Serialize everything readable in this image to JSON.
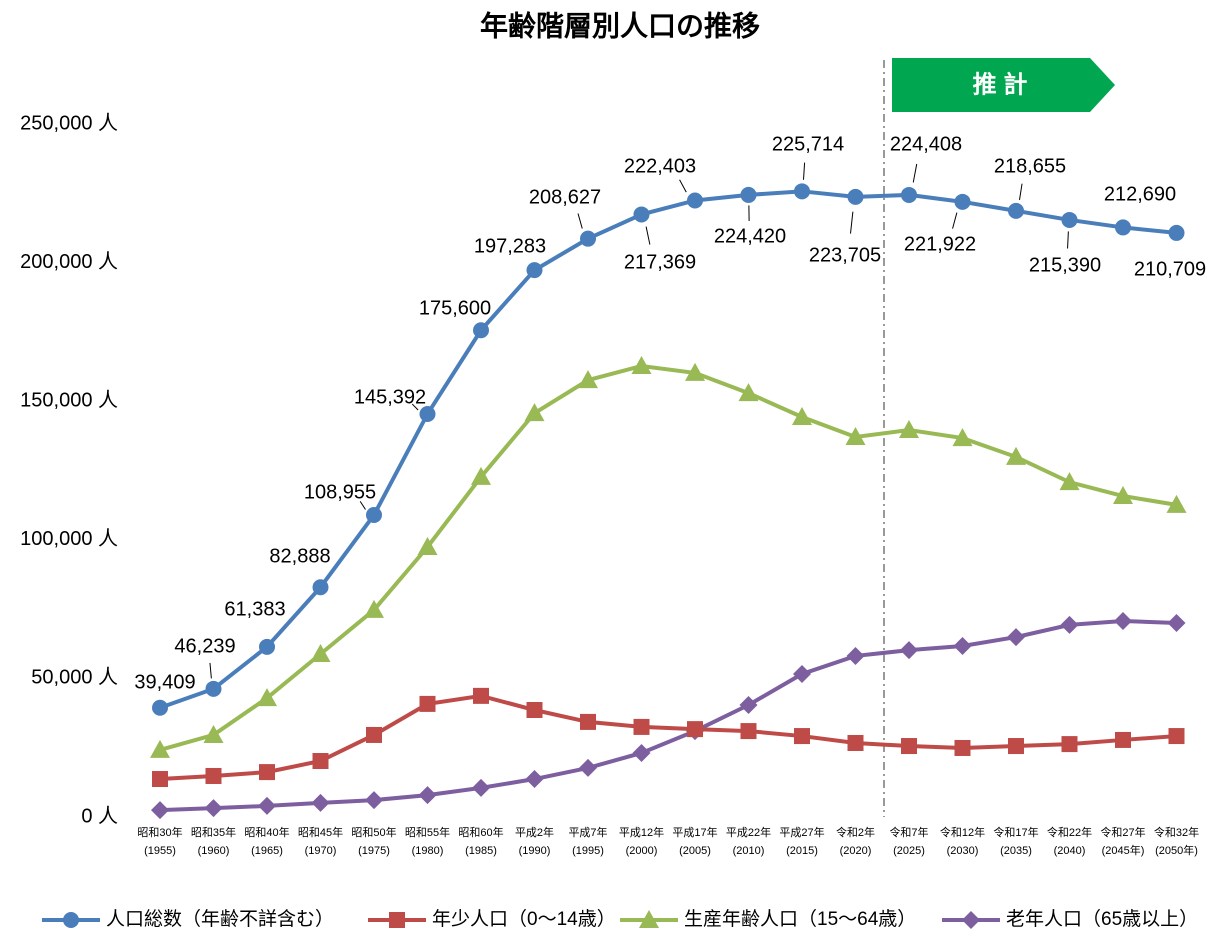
{
  "chart_data": {
    "type": "line",
    "title": "年齢階層別人口の推移",
    "annotation": "推 計",
    "categories": [
      [
        "昭和30年",
        "(1955)"
      ],
      [
        "昭和35年",
        "(1960)"
      ],
      [
        "昭和40年",
        "(1965)"
      ],
      [
        "昭和45年",
        "(1970)"
      ],
      [
        "昭和50年",
        "(1975)"
      ],
      [
        "昭和55年",
        "(1980)"
      ],
      [
        "昭和60年",
        "(1985)"
      ],
      [
        "平成2年",
        "(1990)"
      ],
      [
        "平成7年",
        "(1995)"
      ],
      [
        "平成12年",
        "(2000)"
      ],
      [
        "平成17年",
        "(2005)"
      ],
      [
        "平成22年",
        "(2010)"
      ],
      [
        "平成27年",
        "(2015)"
      ],
      [
        "令和2年",
        "(2020)"
      ],
      [
        "令和7年",
        "(2025)"
      ],
      [
        "令和12年",
        "(2030)"
      ],
      [
        "令和17年",
        "(2035)"
      ],
      [
        "令和22年",
        "(2040)"
      ],
      [
        "令和27年",
        "(2045年)"
      ],
      [
        "令和32年",
        "(2050年)"
      ]
    ],
    "series": [
      {
        "name": "人口総数（年齢不詳含む）",
        "color": "#4a7ebb",
        "marker": "circle",
        "values": [
          39409,
          46239,
          61383,
          82888,
          108955,
          145392,
          175600,
          197283,
          208627,
          217369,
          222403,
          224420,
          225714,
          223705,
          224408,
          221922,
          218655,
          215390,
          212690,
          210709
        ],
        "value_labels": [
          "39,409",
          "46,239",
          "61,383",
          "82,888",
          "108,955",
          "145,392",
          "175,600",
          "197,283",
          "208,627",
          "217,369",
          "222,403",
          "224,420",
          "225,714",
          "223,705",
          "224,408",
          "221,922",
          "218,655",
          "215,390",
          "212,690",
          "210,709"
        ]
      },
      {
        "name": "年少人口（0～14歳）",
        "color": "#be4b48",
        "marker": "square",
        "values": [
          13700,
          14800,
          16200,
          20200,
          29600,
          40800,
          43700,
          38600,
          34300,
          32500,
          31700,
          31000,
          29200,
          26700,
          25600,
          24900,
          25600,
          26300,
          27800,
          29200
        ]
      },
      {
        "name": "生産年齢人口（15～64歳）",
        "color": "#98b954",
        "marker": "triangle",
        "values": [
          24200,
          29600,
          42900,
          58800,
          74700,
          97400,
          122700,
          145700,
          157600,
          162700,
          160200,
          152900,
          144300,
          137100,
          139600,
          136700,
          129900,
          120800,
          115800,
          112600
        ]
      },
      {
        "name": "老年人口（65歳以上）",
        "color": "#7d5fa0",
        "marker": "diamond",
        "values": [
          2500,
          3200,
          4000,
          5100,
          6100,
          7900,
          10500,
          13700,
          17700,
          23100,
          31000,
          40400,
          51600,
          58100,
          60200,
          61700,
          64900,
          69300,
          70700,
          70000
        ]
      }
    ],
    "ylim": [
      0,
      250000
    ],
    "yticks": [
      {
        "value": 0,
        "label": "0 人"
      },
      {
        "value": 50000,
        "label": "50,000 人"
      },
      {
        "value": 100000,
        "label": "100,000 人"
      },
      {
        "value": 150000,
        "label": "150,000 人"
      },
      {
        "value": 200000,
        "label": "200,000 人"
      },
      {
        "value": 250000,
        "label": "250,000 人"
      }
    ],
    "legend": "bottom"
  }
}
